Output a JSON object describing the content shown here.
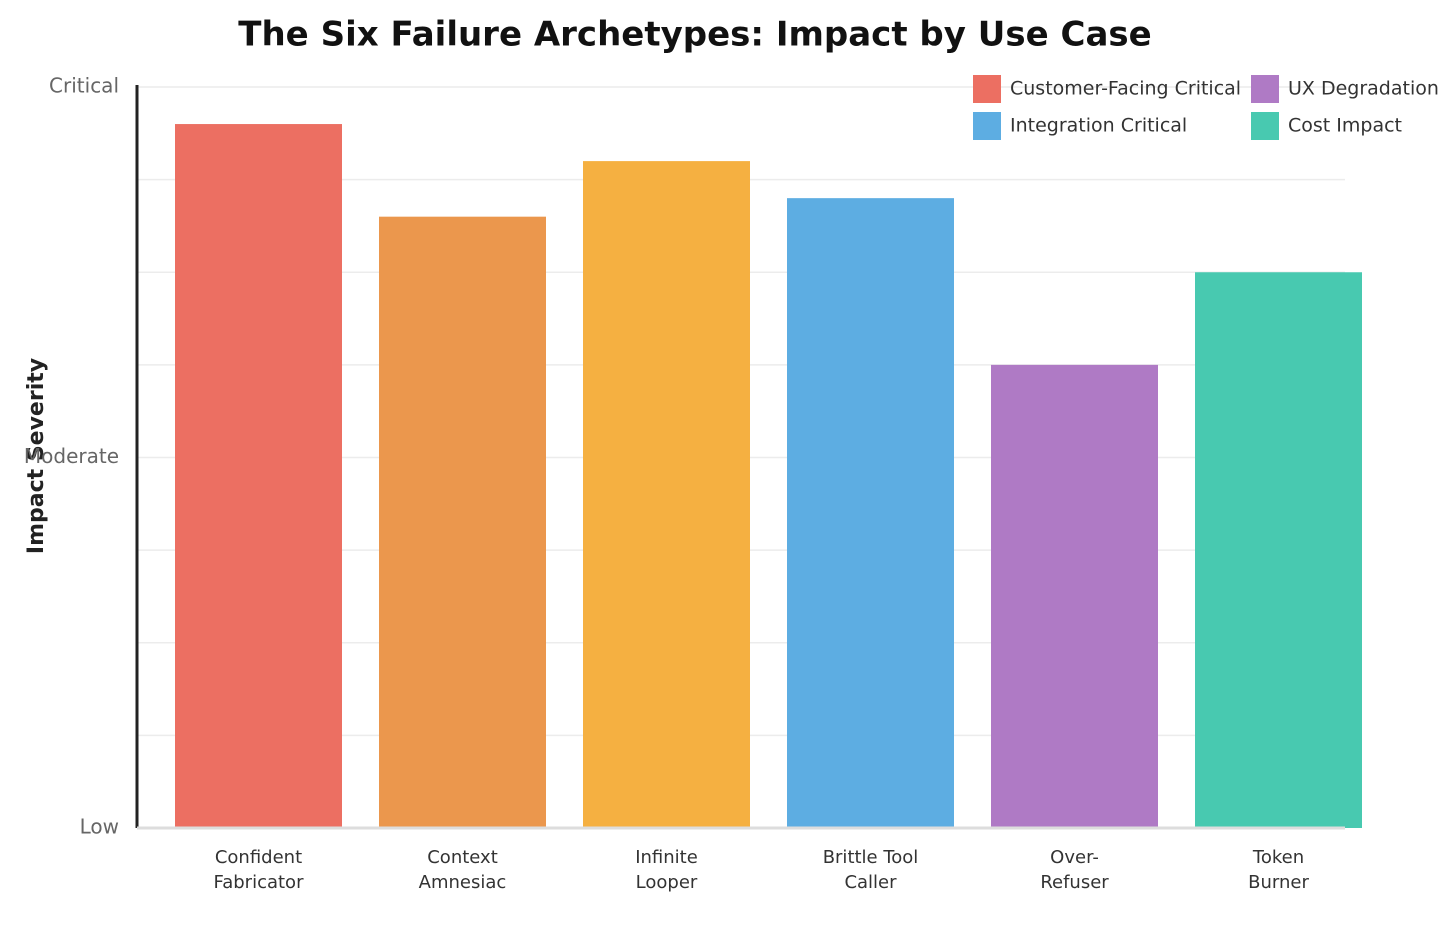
{
  "chart_data": {
    "type": "bar",
    "title": "The Six Failure Archetypes: Impact by Use Case",
    "y_label": "Impact Severity",
    "categories": [
      [
        "Confident",
        "Fabricator"
      ],
      [
        "Context",
        "Amnesiac"
      ],
      [
        "Infinite",
        "Looper"
      ],
      [
        "Brittle Tool",
        "Caller"
      ],
      [
        "Over-",
        "Refuser"
      ],
      [
        "Token",
        "Burner"
      ]
    ],
    "values": [
      9.5,
      8.25,
      9,
      8.5,
      6.25,
      7.5
    ],
    "colors": [
      "#ec6f62",
      "#eb974d",
      "#f5b041",
      "#5dade2",
      "#af7ac5",
      "#48c9b0"
    ],
    "ylim": [
      0,
      10
    ],
    "yticks": [
      {
        "value": 0,
        "label": "Low"
      },
      {
        "value": 5,
        "label": "Moderate"
      },
      {
        "value": 10,
        "label": "Critical"
      }
    ],
    "minor_yticks": [
      1.25,
      2.5,
      3.75,
      6.25,
      7.5,
      8.75
    ],
    "grid": true,
    "legend": [
      {
        "name": "Customer-Facing Critical",
        "color": "#ec6f62"
      },
      {
        "name": "UX Degradation",
        "color": "#af7ac5"
      },
      {
        "name": "Integration Critical",
        "color": "#5dade2"
      },
      {
        "name": "Cost Impact",
        "color": "#48c9b0"
      }
    ],
    "legend_position": "upper right"
  }
}
